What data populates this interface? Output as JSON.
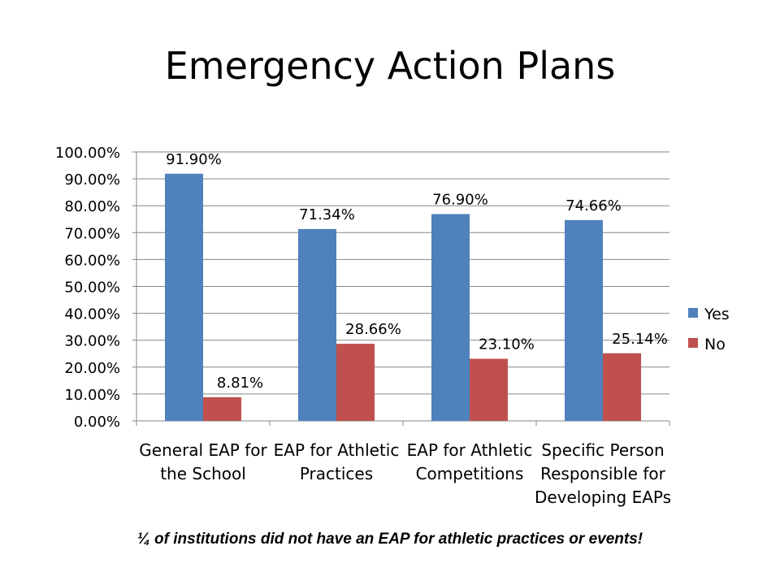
{
  "slide": {
    "title": "Emergency Action Plans",
    "footnote": "¼  of institutions did not have an EAP for athletic practices or events!"
  },
  "colors": {
    "yes": "#4f81bd",
    "no": "#c0504d",
    "grid": "#868686"
  },
  "chart_data": {
    "type": "bar",
    "categories": [
      [
        "General EAP for",
        "the School"
      ],
      [
        "EAP for Athletic",
        "Practices"
      ],
      [
        "EAP for Athletic",
        "Competitions"
      ],
      [
        "Specific Person",
        "Responsible for",
        "Developing EAPs"
      ]
    ],
    "series": [
      {
        "name": "Yes",
        "values": [
          0.919,
          0.7134,
          0.769,
          0.7466
        ],
        "labels": [
          "91.90%",
          "71.34%",
          "76.90%",
          "74.66%"
        ]
      },
      {
        "name": "No",
        "values": [
          0.0881,
          0.2866,
          0.231,
          0.2514
        ],
        "labels": [
          "8.81%",
          "28.66%",
          "23.10%",
          "25.14%"
        ]
      }
    ],
    "ylim": [
      0,
      1
    ],
    "yticks": [
      {
        "value": 0,
        "label": "0.00%"
      },
      {
        "value": 0.1,
        "label": "10.00%"
      },
      {
        "value": 0.2,
        "label": "20.00%"
      },
      {
        "value": 0.3,
        "label": "30.00%"
      },
      {
        "value": 0.4,
        "label": "40.00%"
      },
      {
        "value": 0.5,
        "label": "50.00%"
      },
      {
        "value": 0.6,
        "label": "60.00%"
      },
      {
        "value": 0.7,
        "label": "70.00%"
      },
      {
        "value": 0.8,
        "label": "80.00%"
      },
      {
        "value": 0.9,
        "label": "90.00%"
      },
      {
        "value": 1,
        "label": "100.00%"
      }
    ],
    "grid": true,
    "legend_position": "right"
  }
}
